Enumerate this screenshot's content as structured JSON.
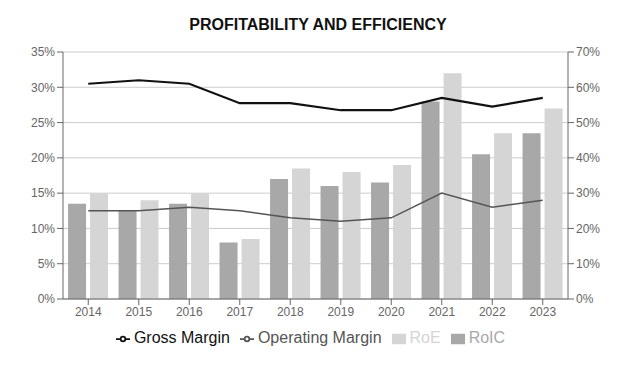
{
  "chart_data": {
    "type": "bar",
    "title": "PROFITABILITY AND EFFICIENCY",
    "categories": [
      "2014",
      "2015",
      "2016",
      "2017",
      "2018",
      "2019",
      "2020",
      "2021",
      "2022",
      "2023"
    ],
    "series": [
      {
        "name": "RoIC",
        "type": "bar",
        "color": "#a8a8a8",
        "values": [
          13.5,
          12.5,
          13.5,
          8.0,
          17.0,
          16.0,
          16.5,
          28.0,
          20.5,
          23.5
        ]
      },
      {
        "name": "RoE",
        "type": "bar",
        "color": "#d5d5d5",
        "values": [
          15.0,
          14.0,
          15.0,
          8.5,
          18.5,
          18.0,
          19.0,
          32.0,
          23.5,
          27.0
        ]
      },
      {
        "name": "Operating Margin",
        "type": "line",
        "color": "#555555",
        "values": [
          12.5,
          12.5,
          13.0,
          12.5,
          11.5,
          11.0,
          11.5,
          15.0,
          13.0,
          14.0
        ]
      },
      {
        "name": "Gross Margin",
        "type": "line",
        "color": "#111111",
        "axis": "y2",
        "values": [
          61.0,
          62.0,
          61.0,
          55.5,
          55.5,
          53.5,
          53.5,
          57.0,
          54.5,
          57.0
        ]
      }
    ],
    "ylim": [
      0,
      35
    ],
    "yticks": [
      {
        "value": 0,
        "label": "0%"
      },
      {
        "value": 5,
        "label": "5%"
      },
      {
        "value": 10,
        "label": "10%"
      },
      {
        "value": 15,
        "label": "15%"
      },
      {
        "value": 20,
        "label": "20%"
      },
      {
        "value": 25,
        "label": "25%"
      },
      {
        "value": 30,
        "label": "30%"
      },
      {
        "value": 35,
        "label": "35%"
      }
    ],
    "y2lim": [
      0,
      70
    ],
    "y2ticks": [
      {
        "value": 0,
        "label": "0%"
      },
      {
        "value": 10,
        "label": "10%"
      },
      {
        "value": 20,
        "label": "20%"
      },
      {
        "value": 30,
        "label": "30%"
      },
      {
        "value": 40,
        "label": "40%"
      },
      {
        "value": 50,
        "label": "50%"
      },
      {
        "value": 60,
        "label": "60%"
      },
      {
        "value": 70,
        "label": "70%"
      }
    ],
    "grid": true,
    "legend": "bottom"
  }
}
